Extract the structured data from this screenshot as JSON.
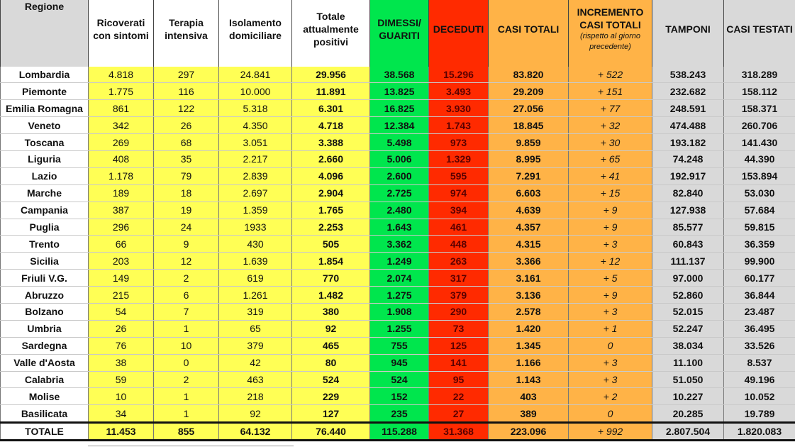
{
  "header": {
    "region": "Regione",
    "ricoverati": "Ricoverati con sintomi",
    "terapia": "Terapia intensiva",
    "isolamento": "Isolamento domiciliare",
    "totale_positivi": "Totale attualmente positivi",
    "dimessi": "DIMESSI/ GUARITI",
    "deceduti": "DECEDUTI",
    "casi_totali": "CASI TOTALI",
    "incremento": "INCREMENTO CASI TOTALI",
    "incremento_note": "(rispetto al giorno precedente)",
    "tamponi": "TAMPONI",
    "casi_testati": "CASI TESTATI"
  },
  "rows": [
    {
      "region": "Lombardia",
      "ricoverati": "4.818",
      "terapia": "297",
      "isolamento": "24.841",
      "positivi": "29.956",
      "dimessi": "38.568",
      "deceduti": "15.296",
      "casi": "83.820",
      "incremento": "+ 522",
      "tamponi": "538.243",
      "testati": "318.289"
    },
    {
      "region": "Piemonte",
      "ricoverati": "1.775",
      "terapia": "116",
      "isolamento": "10.000",
      "positivi": "11.891",
      "dimessi": "13.825",
      "deceduti": "3.493",
      "casi": "29.209",
      "incremento": "+ 151",
      "tamponi": "232.682",
      "testati": "158.112"
    },
    {
      "region": "Emilia Romagna",
      "ricoverati": "861",
      "terapia": "122",
      "isolamento": "5.318",
      "positivi": "6.301",
      "dimessi": "16.825",
      "deceduti": "3.930",
      "casi": "27.056",
      "incremento": "+ 77",
      "tamponi": "248.591",
      "testati": "158.371"
    },
    {
      "region": "Veneto",
      "ricoverati": "342",
      "terapia": "26",
      "isolamento": "4.350",
      "positivi": "4.718",
      "dimessi": "12.384",
      "deceduti": "1.743",
      "casi": "18.845",
      "incremento": "+ 32",
      "tamponi": "474.488",
      "testati": "260.706"
    },
    {
      "region": "Toscana",
      "ricoverati": "269",
      "terapia": "68",
      "isolamento": "3.051",
      "positivi": "3.388",
      "dimessi": "5.498",
      "deceduti": "973",
      "casi": "9.859",
      "incremento": "+ 30",
      "tamponi": "193.182",
      "testati": "141.430"
    },
    {
      "region": "Liguria",
      "ricoverati": "408",
      "terapia": "35",
      "isolamento": "2.217",
      "positivi": "2.660",
      "dimessi": "5.006",
      "deceduti": "1.329",
      "casi": "8.995",
      "incremento": "+ 65",
      "tamponi": "74.248",
      "testati": "44.390"
    },
    {
      "region": "Lazio",
      "ricoverati": "1.178",
      "terapia": "79",
      "isolamento": "2.839",
      "positivi": "4.096",
      "dimessi": "2.600",
      "deceduti": "595",
      "casi": "7.291",
      "incremento": "+ 41",
      "tamponi": "192.917",
      "testati": "153.894"
    },
    {
      "region": "Marche",
      "ricoverati": "189",
      "terapia": "18",
      "isolamento": "2.697",
      "positivi": "2.904",
      "dimessi": "2.725",
      "deceduti": "974",
      "casi": "6.603",
      "incremento": "+ 15",
      "tamponi": "82.840",
      "testati": "53.030"
    },
    {
      "region": "Campania",
      "ricoverati": "387",
      "terapia": "19",
      "isolamento": "1.359",
      "positivi": "1.765",
      "dimessi": "2.480",
      "deceduti": "394",
      "casi": "4.639",
      "incremento": "+ 9",
      "tamponi": "127.938",
      "testati": "57.684"
    },
    {
      "region": "Puglia",
      "ricoverati": "296",
      "terapia": "24",
      "isolamento": "1933",
      "positivi": "2.253",
      "dimessi": "1.643",
      "deceduti": "461",
      "casi": "4.357",
      "incremento": "+ 9",
      "tamponi": "85.577",
      "testati": "59.815"
    },
    {
      "region": "Trento",
      "ricoverati": "66",
      "terapia": "9",
      "isolamento": "430",
      "positivi": "505",
      "dimessi": "3.362",
      "deceduti": "448",
      "casi": "4.315",
      "incremento": "+ 3",
      "tamponi": "60.843",
      "testati": "36.359"
    },
    {
      "region": "Sicilia",
      "ricoverati": "203",
      "terapia": "12",
      "isolamento": "1.639",
      "positivi": "1.854",
      "dimessi": "1.249",
      "deceduti": "263",
      "casi": "3.366",
      "incremento": "+ 12",
      "tamponi": "111.137",
      "testati": "99.900"
    },
    {
      "region": "Friuli V.G.",
      "ricoverati": "149",
      "terapia": "2",
      "isolamento": "619",
      "positivi": "770",
      "dimessi": "2.074",
      "deceduti": "317",
      "casi": "3.161",
      "incremento": "+ 5",
      "tamponi": "97.000",
      "testati": "60.177"
    },
    {
      "region": "Abruzzo",
      "ricoverati": "215",
      "terapia": "6",
      "isolamento": "1.261",
      "positivi": "1.482",
      "dimessi": "1.275",
      "deceduti": "379",
      "casi": "3.136",
      "incremento": "+ 9",
      "tamponi": "52.860",
      "testati": "36.844"
    },
    {
      "region": "Bolzano",
      "ricoverati": "54",
      "terapia": "7",
      "isolamento": "319",
      "positivi": "380",
      "dimessi": "1.908",
      "deceduti": "290",
      "casi": "2.578",
      "incremento": "+ 3",
      "tamponi": "52.015",
      "testati": "23.487"
    },
    {
      "region": "Umbria",
      "ricoverati": "26",
      "terapia": "1",
      "isolamento": "65",
      "positivi": "92",
      "dimessi": "1.255",
      "deceduti": "73",
      "casi": "1.420",
      "incremento": "+ 1",
      "tamponi": "52.247",
      "testati": "36.495"
    },
    {
      "region": "Sardegna",
      "ricoverati": "76",
      "terapia": "10",
      "isolamento": "379",
      "positivi": "465",
      "dimessi": "755",
      "deceduti": "125",
      "casi": "1.345",
      "incremento": "0",
      "tamponi": "38.034",
      "testati": "33.526"
    },
    {
      "region": "Valle d'Aosta",
      "ricoverati": "38",
      "terapia": "0",
      "isolamento": "42",
      "positivi": "80",
      "dimessi": "945",
      "deceduti": "141",
      "casi": "1.166",
      "incremento": "+ 3",
      "tamponi": "11.100",
      "testati": "8.537"
    },
    {
      "region": "Calabria",
      "ricoverati": "59",
      "terapia": "2",
      "isolamento": "463",
      "positivi": "524",
      "dimessi": "524",
      "deceduti": "95",
      "casi": "1.143",
      "incremento": "+ 3",
      "tamponi": "51.050",
      "testati": "49.196"
    },
    {
      "region": "Molise",
      "ricoverati": "10",
      "terapia": "1",
      "isolamento": "218",
      "positivi": "229",
      "dimessi": "152",
      "deceduti": "22",
      "casi": "403",
      "incremento": "+ 2",
      "tamponi": "10.227",
      "testati": "10.052"
    },
    {
      "region": "Basilicata",
      "ricoverati": "34",
      "terapia": "1",
      "isolamento": "92",
      "positivi": "127",
      "dimessi": "235",
      "deceduti": "27",
      "casi": "389",
      "incremento": "0",
      "tamponi": "20.285",
      "testati": "19.789"
    }
  ],
  "total": {
    "region": "TOTALE",
    "ricoverati": "11.453",
    "terapia": "855",
    "isolamento": "64.132",
    "positivi": "76.440",
    "dimessi": "115.288",
    "deceduti": "31.368",
    "casi": "223.096",
    "incremento": "+ 992",
    "tamponi": "2.807.504",
    "testati": "1.820.083"
  },
  "colors": {
    "yellow": "#ffff55",
    "green": "#00e64d",
    "red": "#ff2a00",
    "orange": "#ffb347",
    "grey": "#d9d9d9"
  }
}
